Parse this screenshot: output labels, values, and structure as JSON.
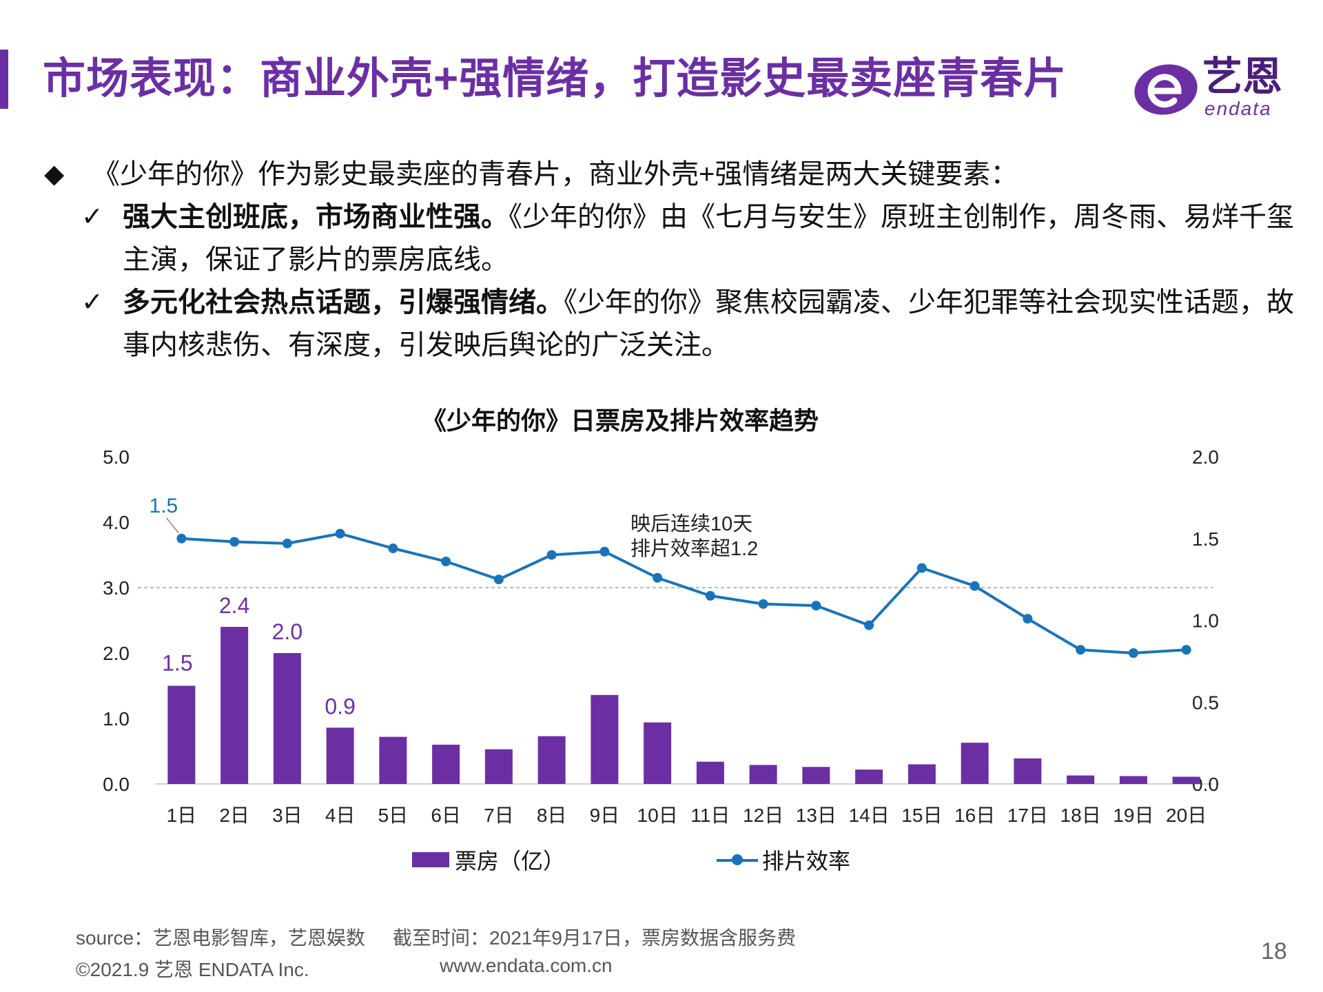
{
  "header": {
    "title": "市场表现：商业外壳+强情绪，打造影史最卖座青春片",
    "logo_text": "艺恩",
    "logo_sub": "endata",
    "accent_color": "#6b2fa3"
  },
  "bullets": {
    "main": "《少年的你》作为影史最卖座的青春片，商业外壳+强情绪是两大关键要素：",
    "points": [
      {
        "bold": "强大主创班底，市场商业性强。",
        "text": "《少年的你》由《七月与安生》原班主创制作，周冬雨、易烊千玺主演，保证了影片的票房底线。"
      },
      {
        "bold": "多元化社会热点话题，引爆强情绪。",
        "text": "《少年的你》聚焦校园霸凌、少年犯罪等社会现实性话题，故事内核悲伤、有深度，引发映后舆论的广泛关注。"
      }
    ]
  },
  "chart_data": {
    "type": "bar+line",
    "title": "《少年的你》日票房及排片效率趋势",
    "categories": [
      "1日",
      "2日",
      "3日",
      "4日",
      "5日",
      "6日",
      "7日",
      "8日",
      "9日",
      "10日",
      "11日",
      "12日",
      "13日",
      "14日",
      "15日",
      "16日",
      "17日",
      "18日",
      "19日",
      "20日"
    ],
    "series": [
      {
        "name": "票房（亿）",
        "type": "bar",
        "axis": "left",
        "color": "#6b2fa3",
        "values": [
          1.5,
          2.4,
          2.0,
          0.86,
          0.72,
          0.6,
          0.53,
          0.73,
          1.36,
          0.94,
          0.34,
          0.29,
          0.26,
          0.22,
          0.3,
          0.63,
          0.39,
          0.13,
          0.12,
          0.11
        ],
        "labels": {
          "0": "1.5",
          "1": "2.4",
          "2": "2.0",
          "3": "0.9"
        }
      },
      {
        "name": "排片效率",
        "type": "line",
        "axis": "right",
        "color": "#1a73b8",
        "values": [
          1.5,
          1.48,
          1.47,
          1.53,
          1.44,
          1.36,
          1.25,
          1.4,
          1.42,
          1.26,
          1.15,
          1.1,
          1.09,
          0.97,
          1.32,
          1.21,
          1.01,
          0.82,
          0.8,
          0.82
        ],
        "labels": {
          "0": "1.5"
        }
      }
    ],
    "y_left": {
      "min": 0,
      "max": 5,
      "ticks": [
        "0.0",
        "1.0",
        "2.0",
        "3.0",
        "4.0",
        "5.0"
      ]
    },
    "y_right": {
      "min": 0,
      "max": 2,
      "ticks": [
        "0.0",
        "0.5",
        "1.0",
        "1.5",
        "2.0"
      ]
    },
    "reference_line": {
      "axis": "right",
      "value": 1.2
    },
    "annotation": [
      "映后连续10天",
      "排片效率超1.2"
    ],
    "legend": [
      "票房（亿）",
      "排片效率"
    ]
  },
  "footer": {
    "source": "source：艺恩电影智库，艺恩娱数",
    "cutoff": "截至时间：2021年9月17日，票房数据含服务费",
    "copyright": "©2021.9 艺恩 ENDATA Inc.",
    "url": "www.endata.com.cn",
    "page_number": "18"
  }
}
